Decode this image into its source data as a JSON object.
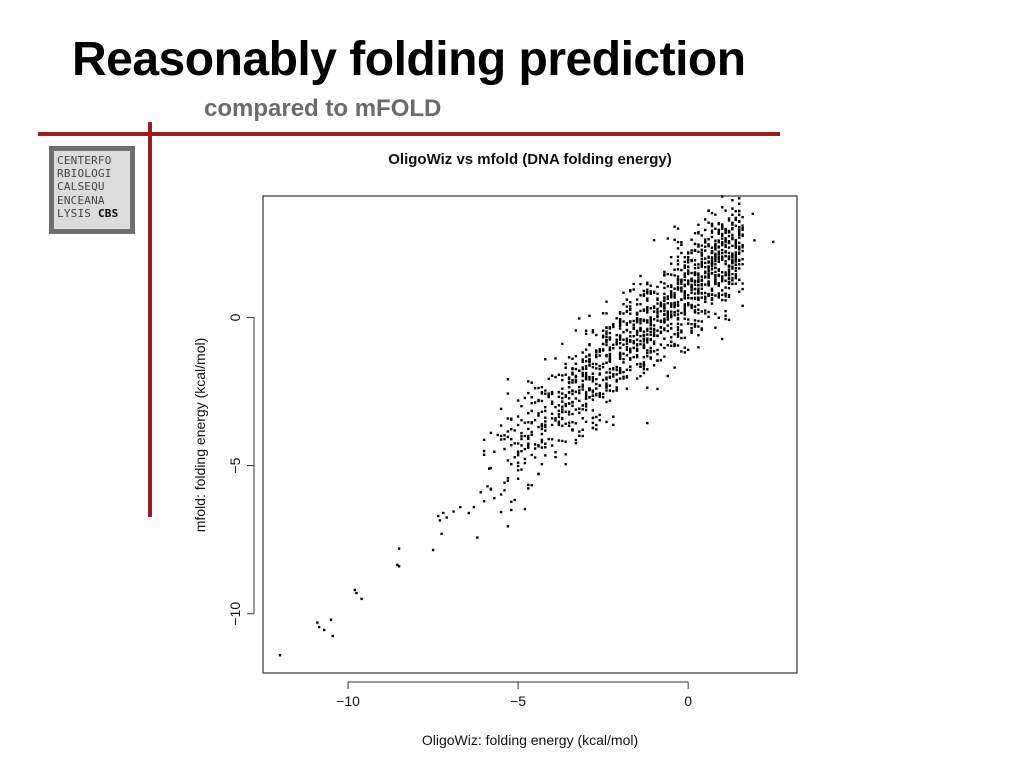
{
  "slide": {
    "title": "Reasonably folding prediction",
    "subtitle": "compared to mFOLD",
    "accent_color": "#a01c1c",
    "logo_lines": [
      "CENTERFO",
      "RBIOLOGI",
      "CALSEQU",
      "ENCEANA",
      "LYSIS"
    ],
    "logo_emph": "CBS"
  },
  "chart_data": {
    "type": "scatter",
    "title": "OligoWiz vs mfold (DNA folding energy)",
    "xlabel": "OligoWiz: folding energy (kcal/mol)",
    "ylabel": "mfold: folding energy (kcal/mol)",
    "xlim": [
      -12.5,
      3.2
    ],
    "ylim": [
      -12.0,
      4.1
    ],
    "xticks": [
      -10,
      -5,
      0
    ],
    "yticks": [
      -10,
      -5,
      0
    ],
    "xtick_labels": [
      "−10",
      "−5",
      "0"
    ],
    "ytick_labels": [
      "−10",
      "−5",
      "0"
    ],
    "grid": false,
    "legend": "none",
    "point_color": "#000000",
    "outlier_points": [
      [
        -12.0,
        -11.4
      ],
      [
        -10.9,
        -10.3
      ],
      [
        -10.85,
        -10.45
      ],
      [
        -10.7,
        -10.55
      ],
      [
        -10.5,
        -10.2
      ],
      [
        -10.45,
        -10.75
      ],
      [
        -9.8,
        -9.2
      ],
      [
        -9.75,
        -9.3
      ],
      [
        -9.6,
        -9.5
      ],
      [
        -8.5,
        -7.8
      ],
      [
        -8.55,
        -8.35
      ],
      [
        -8.5,
        -8.4
      ],
      [
        -7.5,
        -7.85
      ],
      [
        -7.35,
        -6.7
      ],
      [
        -7.3,
        -6.85
      ],
      [
        -7.25,
        -7.3
      ],
      [
        -7.2,
        -6.6
      ],
      [
        -7.1,
        -6.75
      ],
      [
        -6.9,
        -6.55
      ],
      [
        -6.7,
        -6.4
      ],
      [
        -6.45,
        -6.6
      ],
      [
        -6.3,
        -6.4
      ],
      [
        -6.1,
        -5.9
      ],
      [
        -6.0,
        -6.2
      ],
      [
        -5.9,
        -5.7
      ],
      [
        -5.85,
        -5.1
      ],
      [
        -5.7,
        -6.1
      ],
      [
        -5.5,
        -4.0
      ],
      [
        -5.3,
        -7.05
      ],
      [
        -5.2,
        -6.5
      ],
      [
        0.2,
        -0.1
      ],
      [
        1.1,
        1.8
      ],
      [
        1.9,
        3.5
      ],
      [
        1.95,
        2.6
      ],
      [
        2.5,
        2.55
      ]
    ],
    "cloud": {
      "approx_points": 1400,
      "trend_slope": 1.0,
      "trend_intercept": 0.9,
      "spread": 0.85,
      "x_range": [
        -6.2,
        1.6
      ]
    }
  }
}
